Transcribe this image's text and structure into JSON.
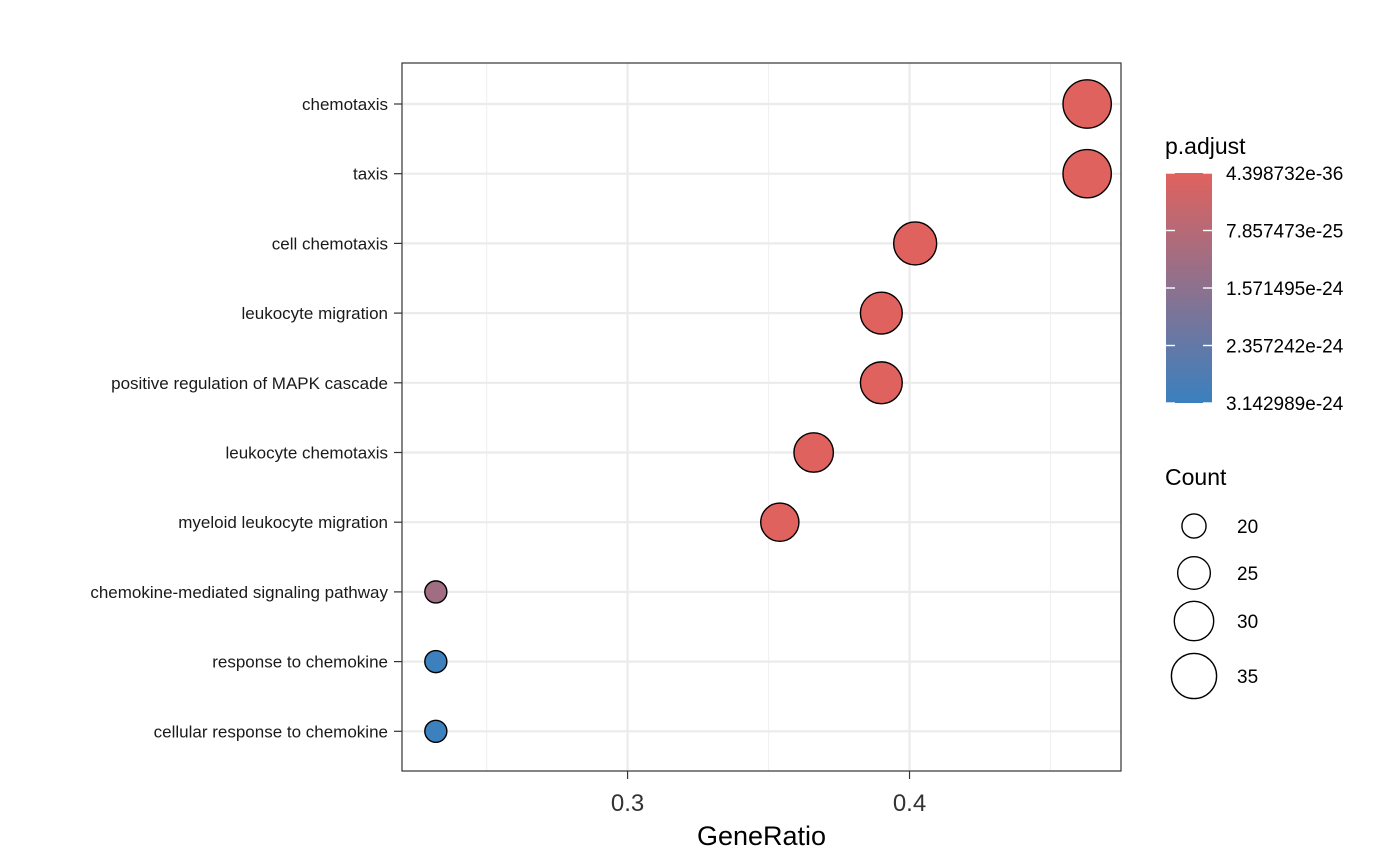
{
  "chart_data": {
    "type": "scatter",
    "xlabel": "GeneRatio",
    "ylabel": "",
    "xlim": [
      0.22,
      0.475
    ],
    "xticks": [
      0.3,
      0.4
    ],
    "xtick_labels": [
      "0.3",
      "0.4"
    ],
    "xminor": [
      0.25,
      0.35,
      0.45
    ],
    "grid": true,
    "categories": [
      "chemotaxis",
      "taxis",
      "cell chemotaxis",
      "leukocyte migration",
      "positive regulation of MAPK cascade",
      "leukocyte chemotaxis",
      "myeloid leukocyte migration",
      "chemokine-mediated signaling pathway",
      "response to chemokine",
      "cellular response to chemokine"
    ],
    "points": [
      {
        "term": "chemotaxis",
        "gene_ratio": 0.463,
        "count": 38,
        "p_adjust": 4.4e-36
      },
      {
        "term": "taxis",
        "gene_ratio": 0.463,
        "count": 38,
        "p_adjust": 4.4e-36
      },
      {
        "term": "cell chemotaxis",
        "gene_ratio": 0.402,
        "count": 33,
        "p_adjust": 1e-30
      },
      {
        "term": "leukocyte migration",
        "gene_ratio": 0.39,
        "count": 32,
        "p_adjust": 1e-29
      },
      {
        "term": "positive regulation of MAPK cascade",
        "gene_ratio": 0.39,
        "count": 32,
        "p_adjust": 1e-28
      },
      {
        "term": "leukocyte chemotaxis",
        "gene_ratio": 0.366,
        "count": 30,
        "p_adjust": 1e-28
      },
      {
        "term": "myeloid leukocyte migration",
        "gene_ratio": 0.354,
        "count": 29,
        "p_adjust": 1e-27
      },
      {
        "term": "chemokine-mediated signaling pathway",
        "gene_ratio": 0.232,
        "count": 19,
        "p_adjust": 1.2e-24
      },
      {
        "term": "response to chemokine",
        "gene_ratio": 0.232,
        "count": 19,
        "p_adjust": 3.1e-24
      },
      {
        "term": "cellular response to chemokine",
        "gene_ratio": 0.232,
        "count": 19,
        "p_adjust": 3.1e-24
      }
    ],
    "color_legend": {
      "title": "p.adjust",
      "low_color": "#e0625e",
      "high_color": "#3a80bf",
      "range": [
        4.398732e-36,
        3.142989e-24
      ],
      "tick_values": [
        4.398732e-36,
        7.857473e-25,
        1.571495e-24,
        2.357242e-24,
        3.142989e-24
      ],
      "tick_labels": [
        "4.398732e-36",
        "7.857473e-25",
        "1.571495e-24",
        "2.357242e-24",
        "3.142989e-24"
      ]
    },
    "size_legend": {
      "title": "Count",
      "values": [
        20,
        25,
        30,
        35
      ],
      "labels": [
        "20",
        "25",
        "30",
        "35"
      ]
    },
    "legend_position": "right"
  }
}
